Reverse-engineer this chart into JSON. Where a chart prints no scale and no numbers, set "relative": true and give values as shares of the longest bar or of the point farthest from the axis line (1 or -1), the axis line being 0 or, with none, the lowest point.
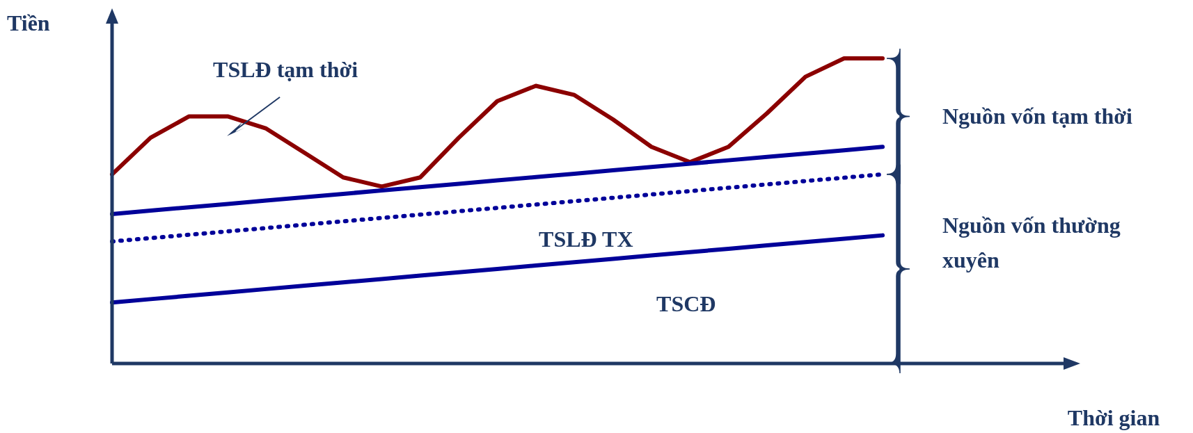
{
  "chart_data": {
    "type": "line",
    "relative": true,
    "ylabel": "Tiền",
    "categories": [
      null,
      null,
      null,
      null,
      null,
      null,
      null,
      null,
      null,
      null,
      null,
      null,
      null,
      null,
      null,
      null,
      null,
      null,
      null,
      null,
      null
    ],
    "series": [
      {
        "color": "#8b0000",
        "line_style": "solid",
        "values": [
          0.62,
          0.74,
          0.81,
          0.81,
          0.77,
          0.69,
          0.61,
          0.58,
          0.61,
          0.74,
          0.86,
          0.91,
          0.88,
          0.8,
          0.71,
          0.66,
          0.71,
          0.82,
          0.94,
          1.0,
          1.0
        ]
      },
      {
        "color": "#000099",
        "line_style": "solid",
        "values": [
          0.49,
          0.501,
          0.512,
          0.523,
          0.534,
          0.545,
          0.556,
          0.567,
          0.578,
          0.589,
          0.6,
          0.611,
          0.622,
          0.633,
          0.644,
          0.655,
          0.666,
          0.677,
          0.688,
          0.699,
          0.71
        ]
      },
      {
        "color": "#000099",
        "line_style": "dotted",
        "values": [
          0.4,
          0.411,
          0.422,
          0.433,
          0.444,
          0.455,
          0.466,
          0.477,
          0.488,
          0.499,
          0.51,
          0.521,
          0.532,
          0.543,
          0.554,
          0.565,
          0.576,
          0.587,
          0.598,
          0.609,
          0.62
        ]
      },
      {
        "color": "#000099",
        "line_style": "solid",
        "values": [
          0.2,
          0.211,
          0.222,
          0.233,
          0.244,
          0.255,
          0.266,
          0.277,
          0.288,
          0.299,
          0.31,
          0.321,
          0.332,
          0.343,
          0.354,
          0.365,
          0.376,
          0.387,
          0.398,
          0.409,
          0.42
        ]
      }
    ],
    "annotations": [
      "TSLĐ tạm thời",
      "TSLĐ TX",
      "TSCĐ",
      "Nguồn vốn tạm thời",
      "Nguồn vốn thường xuyên",
      "Thời gian"
    ]
  }
}
